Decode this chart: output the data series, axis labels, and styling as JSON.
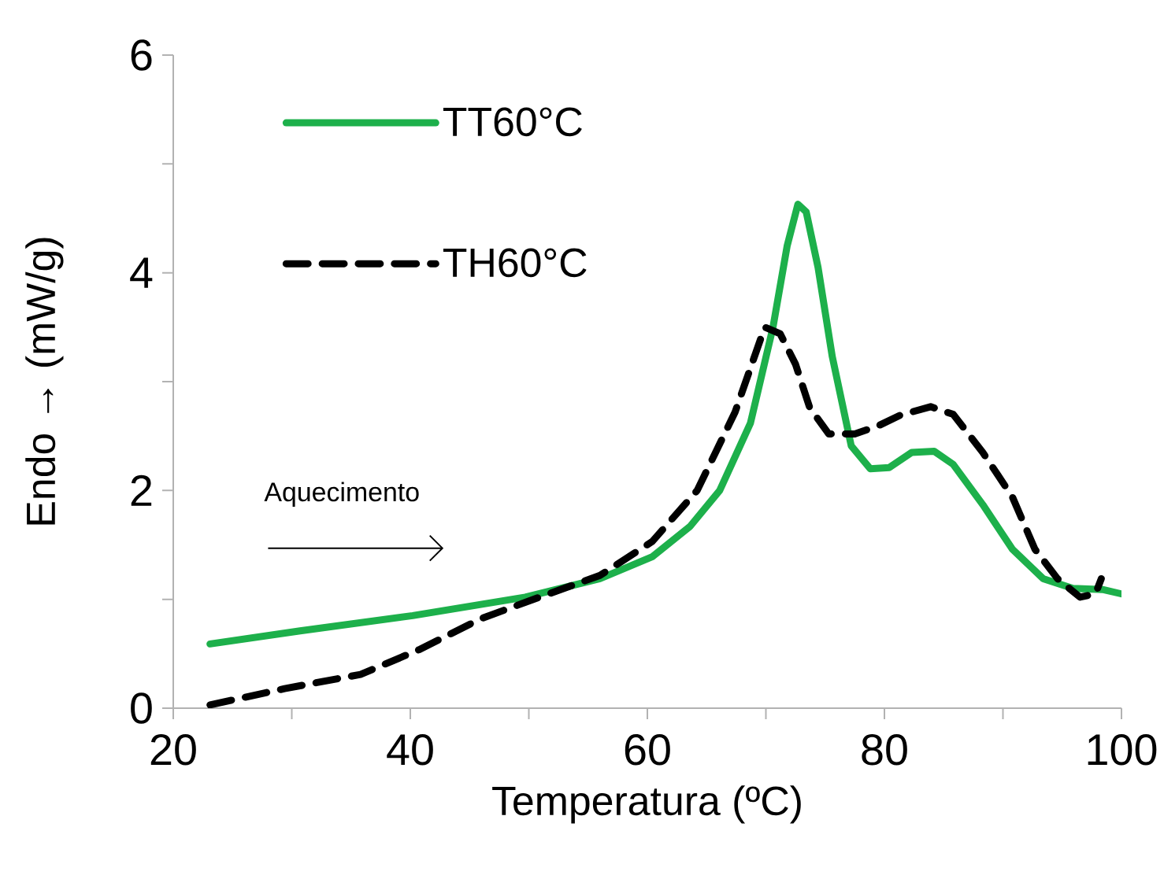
{
  "chart_data": {
    "type": "line",
    "xlabel": "Temperatura  (ºC)",
    "ylabel": "Endo → (mW/g)",
    "xlim": [
      20,
      100
    ],
    "ylim": [
      0,
      6
    ],
    "xticks": [
      20,
      {
        "value": 30,
        "label": null
      },
      40,
      {
        "value": 50,
        "label": null
      },
      60,
      {
        "value": 70,
        "label": null
      },
      80,
      {
        "value": 90,
        "label": null
      },
      100
    ],
    "yticks": [
      0,
      {
        "value": 1,
        "label": null
      },
      2,
      {
        "value": 3,
        "label": null
      },
      4,
      {
        "value": 5,
        "label": null
      },
      6
    ],
    "grid": false,
    "legend": "top left",
    "marker": "none",
    "annotations": [
      "Aquecimento"
    ],
    "series": [
      {
        "name": "TT60°C",
        "color": "#1db04b",
        "line_style": "solid",
        "x": [
          23.1,
          30.7,
          40.2,
          49.7,
          56,
          60.4,
          63.6,
          66.1,
          68.7,
          70.6,
          71.8,
          72.7,
          73.4,
          74.4,
          75.6,
          77.2,
          78.8,
          80.4,
          82.3,
          84.2,
          85.8,
          88.3,
          90.8,
          93.4,
          95.9,
          98.4,
          100
        ],
        "values": [
          0.59,
          0.71,
          0.85,
          1.02,
          1.19,
          1.39,
          1.67,
          2.0,
          2.62,
          3.5,
          4.25,
          4.63,
          4.56,
          4.05,
          3.23,
          2.41,
          2.2,
          2.21,
          2.35,
          2.36,
          2.24,
          1.87,
          1.46,
          1.19,
          1.1,
          1.09,
          1.05
        ]
      },
      {
        "name": "TH60°C",
        "color": "#000000",
        "line_style": "dashed",
        "x": [
          23.1,
          29.4,
          35.8,
          40.8,
          45.9,
          50.9,
          56,
          60.4,
          64.2,
          67.4,
          69.9,
          71.2,
          72.5,
          73.7,
          75.3,
          77.5,
          79.4,
          81.3,
          83.9,
          85.8,
          88.3,
          90.8,
          92.7,
          94.6,
          96.5,
          97.8,
          98.3
        ],
        "values": [
          0.03,
          0.18,
          0.31,
          0.54,
          0.82,
          1.02,
          1.22,
          1.53,
          2.0,
          2.72,
          3.5,
          3.44,
          3.16,
          2.76,
          2.52,
          2.52,
          2.59,
          2.69,
          2.77,
          2.7,
          2.35,
          1.94,
          1.46,
          1.19,
          1.02,
          1.05,
          1.19
        ]
      }
    ]
  }
}
